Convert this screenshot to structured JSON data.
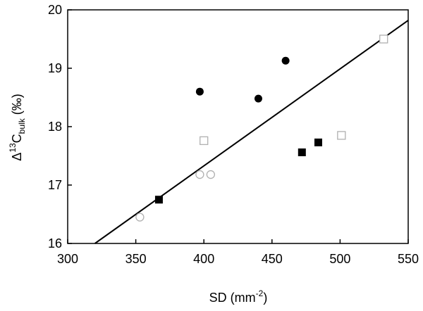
{
  "chart_data": {
    "type": "scatter",
    "title": "",
    "xlabel": {
      "base": "SD (mm",
      "sup": "-2",
      "tail": ")"
    },
    "ylabel": {
      "delta": "Δ",
      "sup": "13",
      "base": "C",
      "sub": "bulk",
      "tail": " (‰)"
    },
    "xlim": [
      300,
      550
    ],
    "ylim": [
      16,
      20
    ],
    "xticks": [
      300,
      350,
      400,
      450,
      500,
      550
    ],
    "yticks": [
      16,
      17,
      18,
      19,
      20
    ],
    "grid": false,
    "series": [
      {
        "marker": "filled-circle",
        "color": "#000000",
        "points": [
          [
            397,
            18.6
          ],
          [
            440,
            18.48
          ],
          [
            460,
            19.13
          ]
        ]
      },
      {
        "marker": "filled-square",
        "color": "#000000",
        "points": [
          [
            367,
            16.75
          ],
          [
            472,
            17.56
          ],
          [
            484,
            17.73
          ]
        ]
      },
      {
        "marker": "open-circle",
        "color": "#b0b0b0",
        "points": [
          [
            353,
            16.45
          ],
          [
            397,
            17.18
          ],
          [
            405,
            17.18
          ]
        ]
      },
      {
        "marker": "open-square",
        "color": "#b0b0b0",
        "points": [
          [
            400,
            17.76
          ],
          [
            501,
            17.85
          ],
          [
            532,
            19.5
          ]
        ]
      }
    ],
    "fit_line": {
      "color": "#000000",
      "points": [
        [
          320,
          16.0
        ],
        [
          550,
          19.82
        ]
      ]
    }
  }
}
